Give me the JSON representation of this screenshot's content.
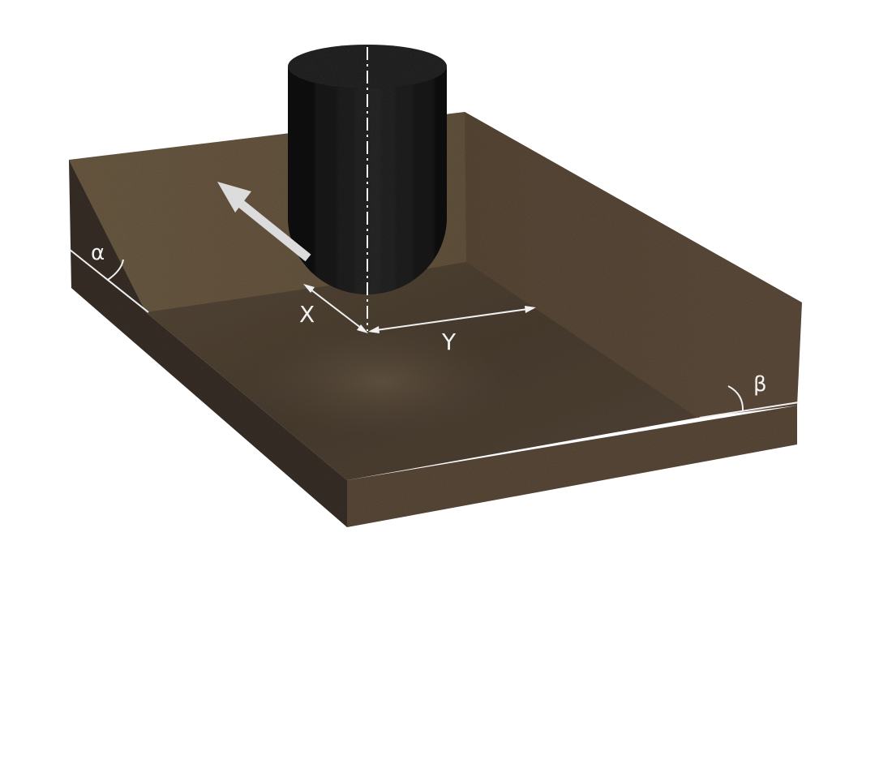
{
  "diagram": {
    "labels": {
      "alpha": "α",
      "beta": "β",
      "x": "X",
      "y": "Y"
    },
    "colors": {
      "background": "#ffffff",
      "block_front": "#5c4b3b",
      "block_left_side": "#3c352d",
      "floor": "#4f4335",
      "back_slope": "#65553f",
      "right_slope": "#5d4c3b",
      "tool": "#1f1f1f",
      "annotation": "#f0f0f0"
    },
    "icons": {
      "tool": "ball-end-mill-icon",
      "feed_arrow": "feed-direction-arrow-icon"
    }
  }
}
